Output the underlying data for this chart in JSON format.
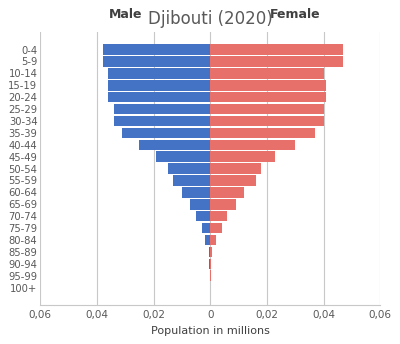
{
  "title": "Djibouti (2020)",
  "xlabel": "Population in millions",
  "male_label": "Male",
  "female_label": "Female",
  "age_groups": [
    "100+",
    "95-99",
    "90-94",
    "85-89",
    "80-84",
    "75-79",
    "70-74",
    "65-69",
    "60-64",
    "55-59",
    "50-54",
    "45-49",
    "40-44",
    "35-39",
    "30-34",
    "25-29",
    "20-24",
    "15-19",
    "10-14",
    "5-9",
    "0-4"
  ],
  "male_values": [
    8e-05,
    0.00015,
    0.0003,
    0.0006,
    0.0018,
    0.003,
    0.005,
    0.007,
    0.01,
    0.013,
    0.015,
    0.019,
    0.025,
    0.031,
    0.034,
    0.034,
    0.036,
    0.036,
    0.036,
    0.038,
    0.038
  ],
  "female_values": [
    8e-05,
    0.00015,
    0.0003,
    0.0008,
    0.002,
    0.004,
    0.006,
    0.009,
    0.012,
    0.016,
    0.018,
    0.023,
    0.03,
    0.037,
    0.04,
    0.04,
    0.041,
    0.041,
    0.04,
    0.047,
    0.047
  ],
  "male_color": "#4472C4",
  "female_color": "#E8706A",
  "xlim": 0.06,
  "background_color": "#ffffff",
  "grid_color": "#c8c8c8",
  "title_color": "#595959",
  "label_color": "#404040",
  "tick_color": "#595959",
  "xticks": [
    -0.06,
    -0.04,
    -0.02,
    0.0,
    0.02,
    0.04,
    0.06
  ],
  "xticklabels": [
    "0,06",
    "0,04",
    "0,02",
    "0",
    "0,02",
    "0,04",
    "0,06"
  ],
  "bar_height": 0.88
}
